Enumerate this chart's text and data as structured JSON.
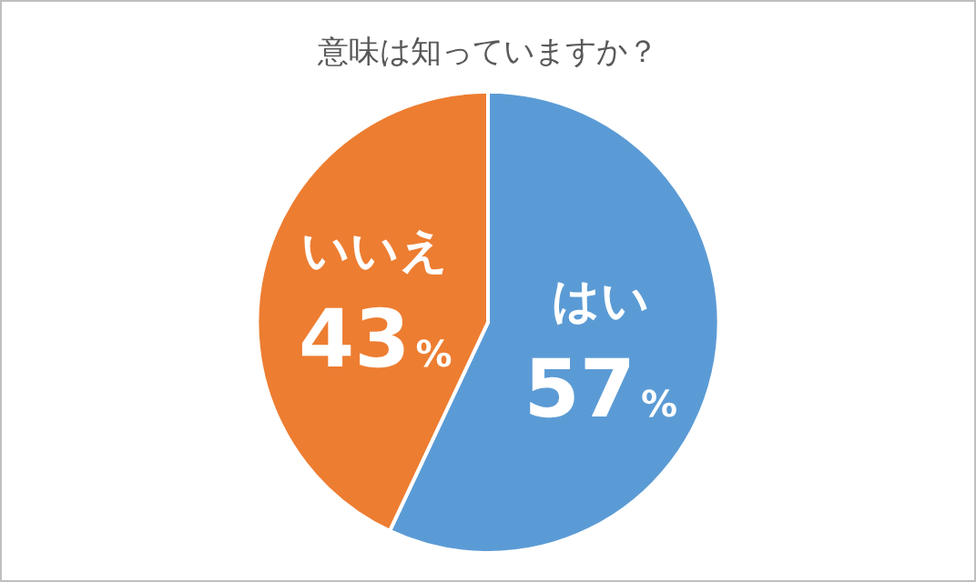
{
  "chart_data": {
    "type": "pie",
    "title": "意味は知っていますか？",
    "categories": [
      "はい",
      "いいえ"
    ],
    "values": [
      57,
      43
    ],
    "value_labels": [
      "57%",
      "43%"
    ],
    "colors": [
      "#5b9bd5",
      "#ed7d31"
    ],
    "legend": false
  }
}
